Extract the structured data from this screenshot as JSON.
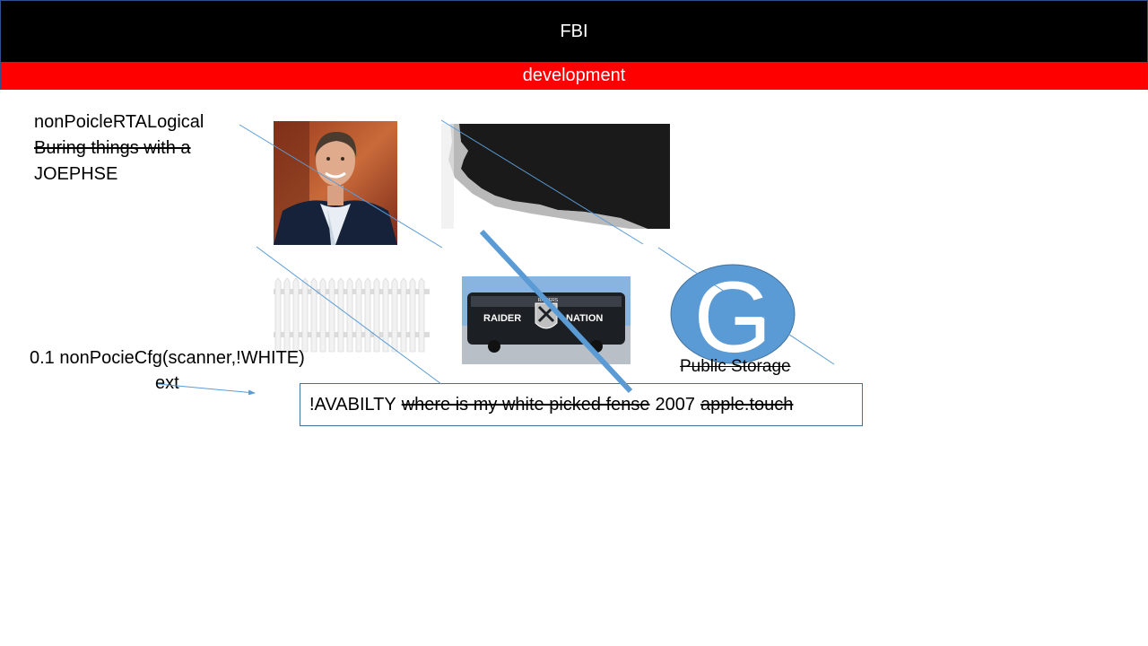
{
  "header": {
    "title": "FBI"
  },
  "subheader": {
    "label": "development"
  },
  "notes": {
    "line1": "nonPoicleRTALogical",
    "line2": "Buring things with a ",
    "line3": "JOEPHSE"
  },
  "bus": {
    "left_text": "RAIDER",
    "right_text": "NATION",
    "badge_text": "RAIDERS"
  },
  "logo": {
    "letter": "G",
    "caption": "Public Storage",
    "color": "#5b9bd5"
  },
  "config": {
    "line1": "0.1 nonPocieCfg(scanner,!WHITE)",
    "line2": "ext"
  },
  "availability": {
    "part1": "!AVABILTY",
    "part2": "where is my white picked fense ",
    "part3": "2007",
    "part4": "apple.touch"
  },
  "colors": {
    "title_bg": "#000000",
    "sub_bg": "#ff0000",
    "line": "#5b9bd5",
    "border": "#41719c"
  }
}
